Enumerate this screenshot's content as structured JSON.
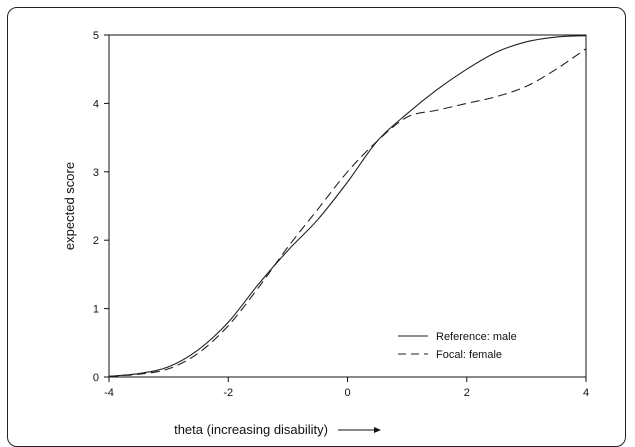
{
  "chart_data": {
    "type": "line",
    "xlabel": "theta (increasing disability)",
    "ylabel": "expected score",
    "xlim": [
      -4,
      4
    ],
    "ylim": [
      0,
      5
    ],
    "xticks": [
      "-4",
      "-2",
      "0",
      "2",
      "4"
    ],
    "yticks": [
      "0",
      "1",
      "2",
      "3",
      "4",
      "5"
    ],
    "grid": false,
    "legend_position": "bottom-right",
    "series": [
      {
        "name": "Reference: male",
        "style": "solid",
        "color": "#222222",
        "x": [
          -4,
          -3.5,
          -3,
          -2.5,
          -2,
          -1.5,
          -1,
          -0.5,
          0,
          0.5,
          1,
          1.5,
          2,
          2.5,
          3,
          3.5,
          4
        ],
        "y": [
          0.01,
          0.05,
          0.15,
          0.4,
          0.8,
          1.35,
          1.85,
          2.3,
          2.85,
          3.45,
          3.85,
          4.2,
          4.5,
          4.75,
          4.9,
          4.97,
          4.99
        ]
      },
      {
        "name": "Focal: female",
        "style": "dashed",
        "color": "#222222",
        "x": [
          -4,
          -3.5,
          -3,
          -2.5,
          -2,
          -1.5,
          -1,
          -0.5,
          0,
          0.5,
          1,
          1.5,
          2,
          2.5,
          3,
          3.5,
          4
        ],
        "y": [
          0.01,
          0.04,
          0.12,
          0.35,
          0.75,
          1.3,
          1.9,
          2.45,
          3.0,
          3.45,
          3.8,
          3.9,
          4.0,
          4.1,
          4.25,
          4.5,
          4.8
        ]
      }
    ]
  }
}
